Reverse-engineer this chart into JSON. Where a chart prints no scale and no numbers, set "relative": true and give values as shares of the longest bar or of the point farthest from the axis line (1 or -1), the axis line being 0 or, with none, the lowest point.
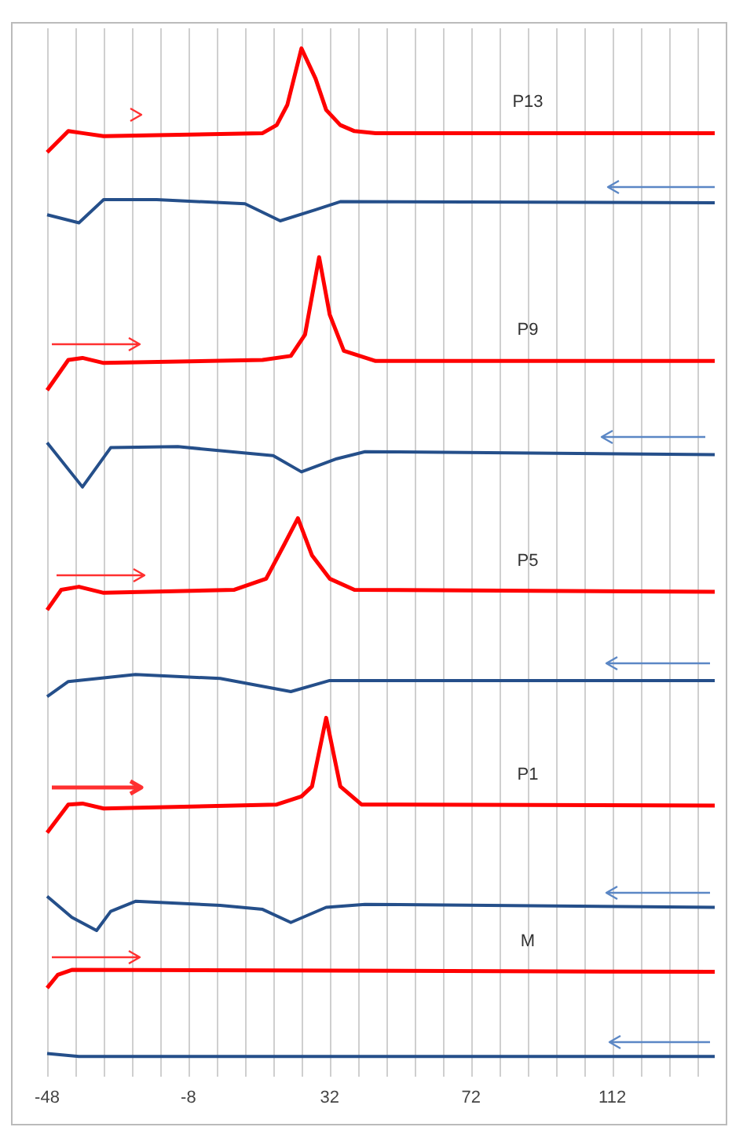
{
  "chart_data": {
    "type": "line",
    "relative": true,
    "marker": "none",
    "grid": "x",
    "xlim": [
      -48,
      141
    ],
    "xticks": [
      -48,
      {
        "value": -40,
        "label": null
      },
      {
        "value": -32,
        "label": null
      },
      {
        "value": -24,
        "label": null
      },
      {
        "value": -16,
        "label": null
      },
      -8,
      {
        "value": 0,
        "label": null
      },
      {
        "value": 8,
        "label": null
      },
      {
        "value": 16,
        "label": null
      },
      {
        "value": 24,
        "label": null
      },
      32,
      {
        "value": 40,
        "label": null
      },
      {
        "value": 48,
        "label": null
      },
      {
        "value": 56,
        "label": null
      },
      {
        "value": 64,
        "label": null
      },
      72,
      {
        "value": 80,
        "label": null
      },
      {
        "value": 88,
        "label": null
      },
      {
        "value": 96,
        "label": null
      },
      {
        "value": 104,
        "label": null
      },
      112,
      {
        "value": 120,
        "label": null
      },
      {
        "value": 128,
        "label": null
      },
      {
        "value": 136,
        "label": null
      }
    ],
    "series": [
      {
        "name": "P13",
        "color": "#ff0000",
        "x": [
          -48,
          -42,
          -38,
          -32,
          -17,
          13,
          17,
          20,
          24,
          28,
          31,
          35,
          39,
          45,
          141
        ],
        "values": [
          0.897,
          0.918,
          0.916,
          0.913,
          0.914,
          0.916,
          0.924,
          0.944,
          1.0,
          0.97,
          0.939,
          0.924,
          0.918,
          0.916,
          0.916
        ]
      },
      {
        "color": "#254f8a",
        "x": [
          -48,
          -39,
          -32,
          -17,
          8,
          18,
          28,
          35,
          141
        ],
        "values": [
          0.835,
          0.827,
          0.85,
          0.85,
          0.846,
          0.829,
          0.84,
          0.848,
          0.847
        ]
      },
      {
        "name": "P9",
        "color": "#ff0000",
        "x": [
          -48,
          -42,
          -38,
          -32,
          13,
          21,
          25,
          29,
          32,
          36,
          45,
          141
        ],
        "values": [
          0.661,
          0.691,
          0.693,
          0.688,
          0.691,
          0.695,
          0.716,
          0.793,
          0.736,
          0.7,
          0.69,
          0.69
        ]
      },
      {
        "color": "#254f8a",
        "x": [
          -48,
          -38,
          -30,
          -11,
          16,
          24,
          34,
          42,
          141
        ],
        "values": [
          0.609,
          0.565,
          0.604,
          0.605,
          0.596,
          0.58,
          0.593,
          0.6,
          0.597
        ]
      },
      {
        "name": "P5",
        "color": "#ff0000",
        "x": [
          -48,
          -44,
          -39,
          -32,
          5,
          14,
          19,
          23,
          27,
          32,
          39,
          141
        ],
        "values": [
          0.443,
          0.463,
          0.466,
          0.46,
          0.463,
          0.474,
          0.507,
          0.534,
          0.497,
          0.474,
          0.463,
          0.461
        ]
      },
      {
        "color": "#254f8a",
        "x": [
          -48,
          -42,
          -23,
          1,
          21,
          32,
          141
        ],
        "values": [
          0.357,
          0.372,
          0.379,
          0.375,
          0.362,
          0.373,
          0.373
        ]
      },
      {
        "name": "P1",
        "color": "#ff0000",
        "x": [
          -48,
          -42,
          -38,
          -32,
          17,
          24,
          27,
          31,
          35,
          41,
          141
        ],
        "values": [
          0.222,
          0.25,
          0.251,
          0.246,
          0.25,
          0.258,
          0.268,
          0.336,
          0.268,
          0.25,
          0.249
        ]
      },
      {
        "color": "#254f8a",
        "x": [
          -48,
          -41,
          -34,
          -30,
          -23,
          1,
          13,
          21,
          31,
          42,
          141
        ],
        "values": [
          0.159,
          0.138,
          0.125,
          0.144,
          0.154,
          0.15,
          0.146,
          0.133,
          0.148,
          0.151,
          0.148
        ]
      },
      {
        "name": "M",
        "color": "#ff0000",
        "x": [
          -48,
          -45,
          -41,
          141
        ],
        "values": [
          0.068,
          0.081,
          0.086,
          0.084
        ]
      },
      {
        "color": "#254f8a",
        "x": [
          -48,
          -39,
          141
        ],
        "values": [
          0.003,
          0,
          0
        ]
      }
    ]
  }
}
